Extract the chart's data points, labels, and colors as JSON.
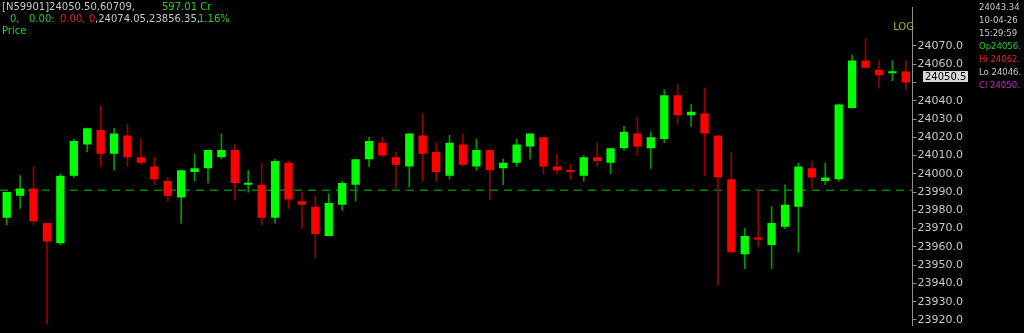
{
  "chart_data": {
    "type": "candlestick",
    "categories": [
      null,
      null,
      null,
      null,
      null,
      null,
      null,
      null,
      null,
      null,
      null,
      null,
      null,
      null,
      null,
      null,
      null,
      null,
      null,
      null,
      null,
      null,
      null,
      null,
      null,
      null,
      null,
      null,
      null,
      null,
      null,
      null,
      null,
      null,
      null,
      null,
      null,
      null,
      null,
      null,
      null,
      null,
      null,
      null,
      null,
      null,
      null,
      null,
      null,
      null,
      null,
      null,
      null,
      null,
      null,
      null,
      null,
      null,
      null,
      null,
      null,
      null,
      null,
      null,
      null,
      null,
      null,
      null
    ],
    "ohlc": [
      [
        23976,
        23990,
        23972,
        23990
      ],
      [
        23988,
        23999,
        23981,
        23992
      ],
      [
        23992,
        24004,
        23972,
        23974
      ],
      [
        23973,
        23973,
        23918,
        23963
      ],
      [
        23962,
        24000,
        23961,
        23999
      ],
      [
        23999,
        24019,
        23998,
        24018
      ],
      [
        24016,
        24025,
        24012,
        24025
      ],
      [
        24024,
        24037,
        24004,
        24011
      ],
      [
        24011,
        24025,
        24002,
        24022
      ],
      [
        24021,
        24027,
        24004,
        24009
      ],
      [
        24009,
        24019,
        24005,
        24006
      ],
      [
        24004,
        24009,
        23994,
        23997
      ],
      [
        23996,
        23998,
        23985,
        23988
      ],
      [
        23987,
        24002,
        23973,
        24002
      ],
      [
        24001,
        24011,
        23996,
        24003
      ],
      [
        24003,
        24013,
        23995,
        24013
      ],
      [
        24009,
        24022,
        24008,
        24013
      ],
      [
        24013,
        24016,
        23986,
        23995
      ],
      [
        23994,
        24002,
        23990,
        23995
      ],
      [
        23994,
        24006,
        23972,
        23976
      ],
      [
        23976,
        24008,
        23973,
        24007
      ],
      [
        24006,
        24007,
        23981,
        23986
      ],
      [
        23985,
        23990,
        23970,
        23983
      ],
      [
        23982,
        23988,
        23954,
        23967
      ],
      [
        23966,
        23989,
        23966,
        23984
      ],
      [
        23983,
        23996,
        23980,
        23995
      ],
      [
        23994,
        24008,
        23985,
        24008
      ],
      [
        24008,
        24020,
        24004,
        24018
      ],
      [
        24017,
        24020,
        24009,
        24010
      ],
      [
        24009,
        24012,
        23992,
        24005
      ],
      [
        24004,
        24022,
        23993,
        24022
      ],
      [
        24021,
        24033,
        23996,
        24011
      ],
      [
        24012,
        24017,
        23996,
        24001
      ],
      [
        23999,
        24021,
        23997,
        24017
      ],
      [
        24016,
        24022,
        24004,
        24005
      ],
      [
        24004,
        24019,
        24002,
        24013
      ],
      [
        24013,
        24013,
        23986,
        24002
      ],
      [
        24003,
        24008,
        23994,
        24006
      ],
      [
        24006,
        24019,
        24004,
        24016
      ],
      [
        24015,
        24022,
        24008,
        24022
      ],
      [
        24020,
        24020,
        24000,
        24004
      ],
      [
        24004,
        24011,
        24000,
        24002
      ],
      [
        24002,
        24005,
        23997,
        24001
      ],
      [
        23999,
        24010,
        23996,
        24009
      ],
      [
        24009,
        24017,
        24004,
        24007
      ],
      [
        24006,
        24014,
        24000,
        24014
      ],
      [
        24014,
        24026,
        24013,
        24023
      ],
      [
        24022,
        24031,
        24010,
        24015
      ],
      [
        24014,
        24023,
        24003,
        24020
      ],
      [
        24019,
        24046,
        24017,
        24043
      ],
      [
        24043,
        24049,
        24027,
        24032
      ],
      [
        24032,
        24038,
        24026,
        24034
      ],
      [
        24033,
        24047,
        23999,
        24022
      ],
      [
        24021,
        24021,
        23939,
        23998
      ],
      [
        23997,
        24012,
        23957,
        23957
      ],
      [
        23956,
        23970,
        23948,
        23966
      ],
      [
        23965,
        23991,
        23960,
        23964
      ],
      [
        23961,
        23982,
        23948,
        23973
      ],
      [
        23971,
        23994,
        23970,
        23983
      ],
      [
        23982,
        24006,
        23957,
        24004
      ],
      [
        24003,
        24007,
        23992,
        23998
      ],
      [
        23996,
        24006,
        23994,
        23998
      ],
      [
        23997,
        24038,
        23996,
        24038
      ],
      [
        24036,
        24065,
        24036,
        24062
      ],
      [
        24062,
        24074,
        24058,
        24058
      ],
      [
        24057,
        24062,
        24047,
        24054
      ],
      [
        24055,
        24062,
        24051,
        24056
      ],
      [
        24056,
        24062,
        24046,
        24050
      ]
    ],
    "colors": [
      "#00ff00",
      "#00ff00",
      "#ff0000",
      "#ff0000",
      "#00ff00",
      "#00ff00",
      "#00ff00",
      "#ff0000",
      "#00ff00",
      "#ff0000",
      "#ff0000",
      "#ff0000",
      "#ff0000",
      "#00ff00",
      "#00ff00",
      "#00ff00",
      "#00ff00",
      "#ff0000",
      "#00ff00",
      "#ff0000",
      "#00ff00",
      "#ff0000",
      "#ff0000",
      "#ff0000",
      "#00ff00",
      "#00ff00",
      "#00ff00",
      "#00ff00",
      "#ff0000",
      "#ff0000",
      "#00ff00",
      "#ff0000",
      "#ff0000",
      "#00ff00",
      "#ff0000",
      "#00ff00",
      "#ff0000",
      "#00ff00",
      "#00ff00",
      "#00ff00",
      "#ff0000",
      "#ff0000",
      "#ff0000",
      "#00ff00",
      "#ff0000",
      "#00ff00",
      "#00ff00",
      "#ff0000",
      "#00ff00",
      "#00ff00",
      "#ff0000",
      "#00ff00",
      "#ff0000",
      "#ff0000",
      "#ff0000",
      "#00ff00",
      "#ff0000",
      "#00ff00",
      "#00ff00",
      "#00ff00",
      "#ff0000",
      "#00ff00",
      "#00ff00",
      "#00ff00",
      "#ff0000",
      "#ff0000",
      "#00ff00",
      "#ff0000"
    ],
    "ylim": [
      23917,
      24091
    ],
    "yticks": [
      {
        "value": 24070,
        "label": "24070.0"
      },
      {
        "value": 24060,
        "label": "24060.0"
      },
      {
        "value": 24050,
        "label": null
      },
      {
        "value": 24040,
        "label": "24040.0"
      },
      {
        "value": 24030,
        "label": "24030.0"
      },
      {
        "value": 24020,
        "label": "24020.0"
      },
      {
        "value": 24010,
        "label": "24010.0"
      },
      {
        "value": 24000,
        "label": "24000.0"
      },
      {
        "value": 23990,
        "label": "23990.0"
      },
      {
        "value": 23980,
        "label": "23980.0"
      },
      {
        "value": 23970,
        "label": "23970.0"
      },
      {
        "value": 23960,
        "label": "23960.0"
      },
      {
        "value": 23950,
        "label": "23950.0"
      },
      {
        "value": 23940,
        "label": "23940.0"
      },
      {
        "value": 23930,
        "label": "23930.0"
      },
      {
        "value": 23920,
        "label": "23920.0"
      }
    ],
    "tick_labels": "y",
    "grid": false,
    "legend": false,
    "ref_lines": [
      {
        "axis": "y",
        "value": 23991,
        "color": "#008000",
        "line_style": "dashed"
      }
    ],
    "annotations": [
      "[N59901]24050.50,60709,",
      "597.01 Cr",
      "0,",
      "0.00:",
      "0.00,",
      "0",
      ",24074.05,23856.35,",
      "1.16%",
      "Price",
      "LOG",
      "24043.34",
      "10-04-26",
      "15:29:59",
      "Op24056.",
      "Hi 24062.",
      "Lo 24046.",
      "Cl 24050.",
      "24050.5"
    ]
  }
}
